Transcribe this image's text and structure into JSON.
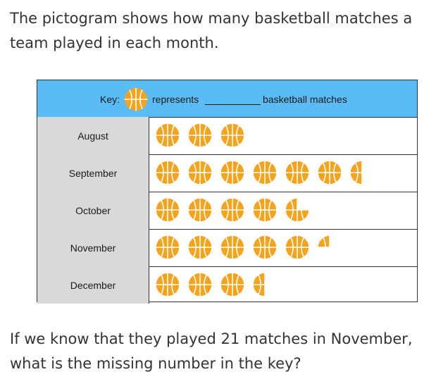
{
  "question": {
    "intro": "The pictogram shows how many basketball matches a team played in each month.",
    "outro": "If we know that they played 21 matches in November, what is the missing number in the key?"
  },
  "key": {
    "label": "Key:",
    "icon": "basketball-icon",
    "represents": "represents",
    "blank_value": "",
    "suffix": "basketball matches"
  },
  "colors": {
    "header": "#5bbcf5",
    "label_cells": "#d9d9d9",
    "ball": "#f7a21b",
    "ball_lines": "#ffffff"
  },
  "chart_data": {
    "type": "pictogram",
    "categories": [
      "August",
      "September",
      "October",
      "November",
      "December"
    ],
    "values": [
      3,
      6.5,
      4.75,
      5.25,
      3.5
    ],
    "unit": "basketball icons"
  }
}
